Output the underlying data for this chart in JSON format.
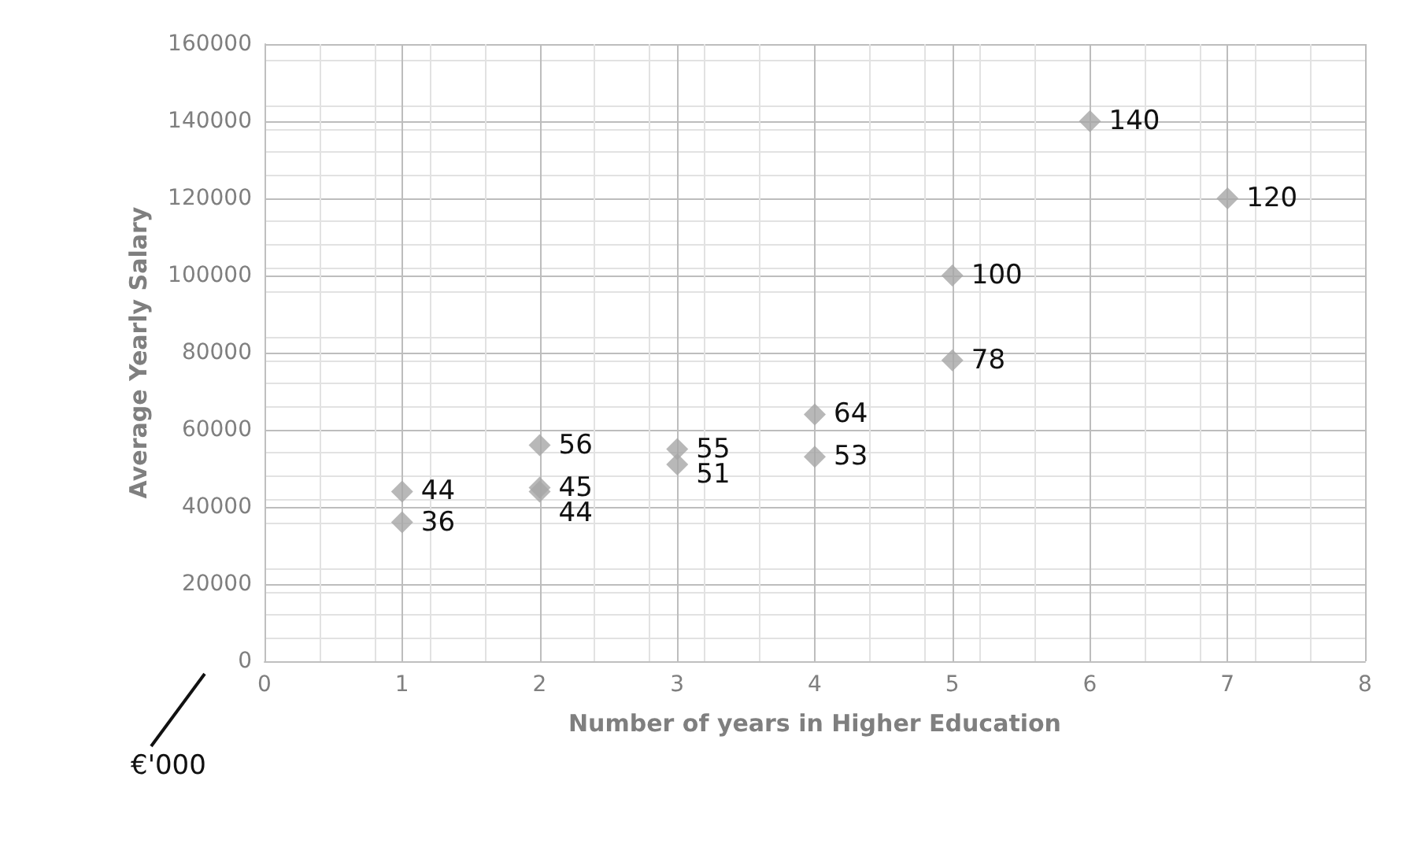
{
  "chart_data": {
    "type": "scatter",
    "xlabel": "Number of years in Higher Education",
    "ylabel": "Average Yearly Salary",
    "x": [
      1,
      1,
      2,
      2,
      2,
      3,
      3,
      4,
      4,
      5,
      5,
      6,
      7
    ],
    "values": [
      44000,
      36000,
      56000,
      45000,
      44000,
      55000,
      51000,
      64000,
      53000,
      100000,
      78000,
      140000,
      120000
    ],
    "color": "#a6a6a6",
    "marker": "diamond",
    "xlim": [
      0,
      8
    ],
    "xticks": [
      0,
      1,
      2,
      3,
      4,
      5,
      6,
      7,
      8
    ],
    "ylim": [
      0,
      160000
    ],
    "yticks": [
      0,
      20000,
      40000,
      60000,
      80000,
      100000,
      120000,
      140000,
      160000
    ],
    "grid": true,
    "annotations": [
      {
        "text": "44",
        "x": 1,
        "y": 44000
      },
      {
        "text": "36",
        "x": 1,
        "y": 36000
      },
      {
        "text": "56",
        "x": 2,
        "y": 56000
      },
      {
        "text": "45",
        "x": 2,
        "y": 45000
      },
      {
        "text": "44",
        "x": 2,
        "y": 44000
      },
      {
        "text": "55",
        "x": 3,
        "y": 55000
      },
      {
        "text": "51",
        "x": 3,
        "y": 51000
      },
      {
        "text": "64",
        "x": 4,
        "y": 64000
      },
      {
        "text": "53",
        "x": 4,
        "y": 53000
      },
      {
        "text": "100",
        "x": 5,
        "y": 100000
      },
      {
        "text": "78",
        "x": 5,
        "y": 78000
      },
      {
        "text": "140",
        "x": 6,
        "y": 140000
      },
      {
        "text": "120",
        "x": 7,
        "y": 120000
      },
      "€'000"
    ]
  }
}
